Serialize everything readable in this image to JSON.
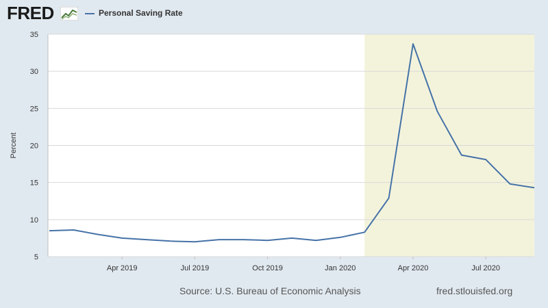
{
  "header": {
    "logo_text": "FRED",
    "legend_label": "Personal Saving Rate"
  },
  "footer": {
    "source": "Source: U.S. Bureau of Economic Analysis",
    "site": "fred.stlouisfed.org"
  },
  "colors": {
    "series": "#4572a7",
    "recession_shading": "#f3f3dc",
    "plot_background": "#ffffff",
    "page_background": "#e1e9f0"
  },
  "icons": [
    "fred-graph-icon"
  ],
  "chart_data": {
    "type": "line",
    "ylabel": "Percent",
    "ylim": [
      5,
      35
    ],
    "yticks": [
      5,
      10,
      15,
      20,
      25,
      30,
      35
    ],
    "grid": true,
    "x": [
      "2019-01",
      "2019-02",
      "2019-03",
      "2019-04",
      "2019-05",
      "2019-06",
      "2019-07",
      "2019-08",
      "2019-09",
      "2019-10",
      "2019-11",
      "2019-12",
      "2020-01",
      "2020-02",
      "2020-03",
      "2020-04",
      "2020-05",
      "2020-06",
      "2020-07",
      "2020-08",
      "2020-09"
    ],
    "xtick_labels": [
      {
        "x": "2019-04",
        "label": "Apr 2019"
      },
      {
        "x": "2019-07",
        "label": "Jul 2019"
      },
      {
        "x": "2019-10",
        "label": "Oct 2019"
      },
      {
        "x": "2020-01",
        "label": "Jan 2020"
      },
      {
        "x": "2020-04",
        "label": "Apr 2020"
      },
      {
        "x": "2020-07",
        "label": "Jul 2020"
      }
    ],
    "series": [
      {
        "values": [
          8.5,
          8.6,
          8.0,
          7.5,
          7.3,
          7.1,
          7.0,
          7.3,
          7.3,
          7.2,
          7.5,
          7.2,
          7.6,
          8.3,
          12.9,
          33.7,
          24.6,
          18.7,
          18.1,
          14.8,
          14.3
        ]
      }
    ],
    "recession_shading": {
      "start": "2020-02",
      "end": "2020-09"
    }
  }
}
